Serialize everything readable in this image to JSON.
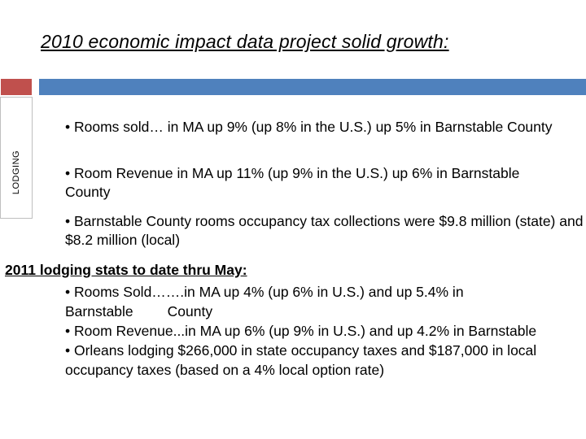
{
  "title": "2010 economic impact data project solid growth:",
  "section_tab": "LODGING",
  "bullets_2010": [
    "• Rooms sold… in MA up 9% (up 8% in the U.S.) up 5% in Barnstable County",
    "• Room Revenue in MA up 11% (up 9% in the U.S.) up 6% in Barnstable County",
    "• Barnstable County rooms occupancy tax collections were $9.8 million (state) and $8.2 million (local)"
  ],
  "heading_2011": "2011 lodging stats to date thru May:",
  "bullets_2011": {
    "rooms_sold_a": "• Rooms Sold…….in MA up 4% (up 6% in U.S.) and up 5.4% in Barnstable",
    "rooms_sold_b": "County",
    "room_revenue": "• Room Revenue...in MA up 6% (up 9% in U.S.) and up 4.2% in Barnstable",
    "orleans": "• Orleans lodging $266,000 in state occupancy taxes and $187,000 in local occupancy taxes (based on a 4% local option rate)"
  },
  "colors": {
    "accent_red": "#c0504d",
    "accent_blue": "#4f81bd"
  }
}
